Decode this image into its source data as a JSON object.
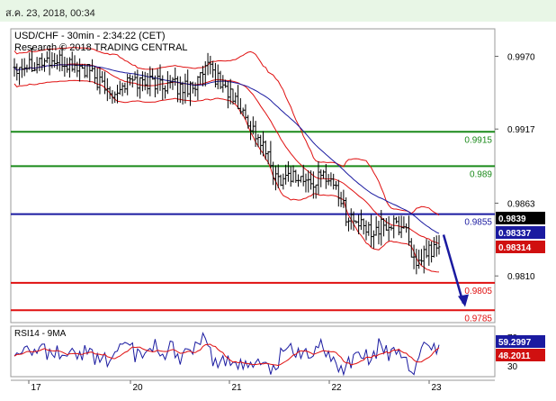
{
  "header": {
    "datetime": "ส.ค. 23, 2018, 00:34"
  },
  "chart_data": [
    {
      "type": "line",
      "title": "USD/CHF - 30min - 2:34:22 (CET)",
      "subtitle": "Research © 2018 TRADING CENTRAL",
      "x_tick_labels": [
        "17",
        "20",
        "21",
        "22",
        "23"
      ],
      "y_tick_labels": [
        "0.9970",
        "0.9917",
        "0.9863",
        "0.9810"
      ],
      "ylim": [
        0.9776,
        0.999
      ],
      "horizontal_levels": [
        {
          "value": 0.9915,
          "label": "0.9915",
          "color": "#1a8a1a"
        },
        {
          "value": 0.989,
          "label": "0.989",
          "color": "#1a8a1a"
        },
        {
          "value": 0.9855,
          "label": "0.9855",
          "color": "#1a1aa0"
        },
        {
          "value": 0.9805,
          "label": "0.9805",
          "color": "#e01010"
        },
        {
          "value": 0.9785,
          "label": "0.9785",
          "color": "#e01010"
        }
      ],
      "badges": [
        {
          "label": "0.9839",
          "value": 0.9839,
          "bg": "#000000",
          "fg": "#ffffff"
        },
        {
          "label": "0.98337",
          "value": 0.98337,
          "bg": "#1a1aa0",
          "fg": "#ffffff"
        },
        {
          "label": "0.98314",
          "value": 0.98314,
          "bg": "#d01010",
          "fg": "#ffffff"
        }
      ],
      "series": [
        {
          "type": "ohlc",
          "color": "#000000"
        },
        {
          "type": "moving-average",
          "color": "#1a1aa0"
        },
        {
          "type": "bollinger-bands",
          "color": "#e01010"
        }
      ],
      "projection": {
        "from": 0.984,
        "to": 0.979,
        "color": "#1a1aa0"
      },
      "grid": false
    },
    {
      "type": "line",
      "title": "RSI14 - 9MA",
      "y_tick_labels": [
        "70",
        "30"
      ],
      "ylim": [
        15,
        85
      ],
      "badges": [
        {
          "label": "59.2997",
          "value": 59.2997,
          "bg": "#1a1aa0",
          "fg": "#ffffff"
        },
        {
          "label": "48.2011",
          "value": 48.2011,
          "bg": "#d01010",
          "fg": "#ffffff"
        }
      ],
      "series": [
        {
          "type": "rsi",
          "color": "#1a1aa0"
        },
        {
          "type": "ma",
          "color": "#e01010"
        }
      ]
    }
  ]
}
